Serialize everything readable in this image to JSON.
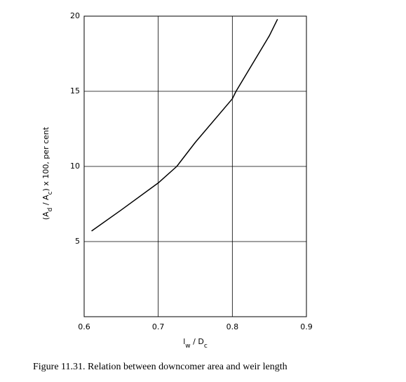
{
  "chart_data": {
    "type": "line",
    "x": [
      0.61,
      0.65,
      0.7,
      0.725,
      0.75,
      0.8,
      0.805,
      0.85,
      0.861
    ],
    "values": [
      5.7,
      7.1,
      8.9,
      10,
      11.6,
      14.5,
      15,
      18.7,
      19.8
    ],
    "color": "#000000",
    "xlim": [
      0.6,
      0.9
    ],
    "xticks": [
      0.6,
      0.7,
      0.8,
      0.9
    ],
    "ylim": [
      0,
      20
    ],
    "yticks": [
      5,
      10,
      15,
      20
    ],
    "grid": true,
    "xlabel": [
      "l",
      "w",
      " / D",
      "c"
    ],
    "ylabel": [
      "(A",
      "d",
      " / A",
      "c",
      ") x 100, per cent"
    ],
    "caption": "Figure 11.31.   Relation between downcomer area and weir length"
  }
}
